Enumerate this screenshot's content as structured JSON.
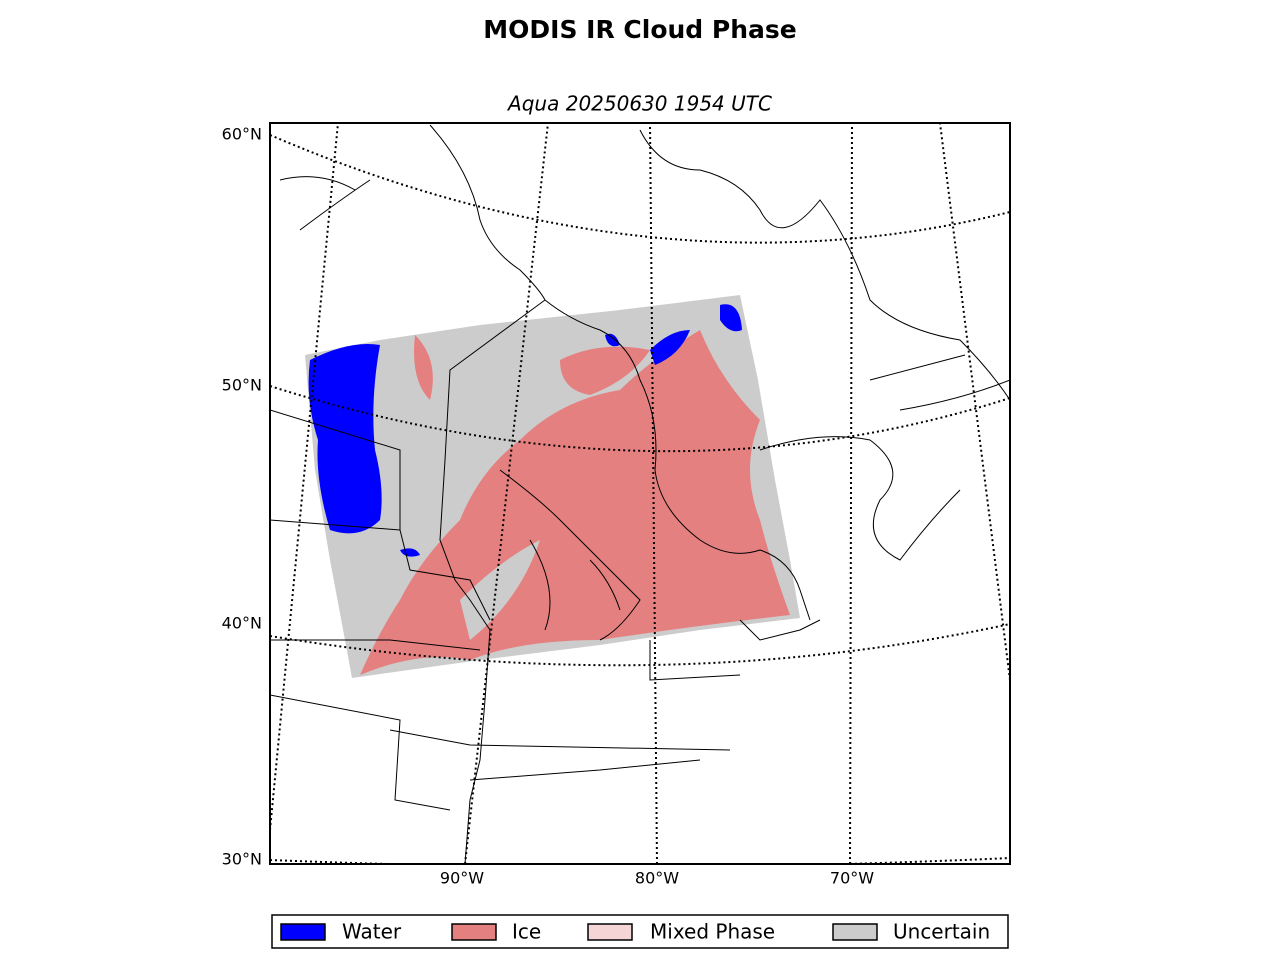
{
  "title": "MODIS IR Cloud Phase",
  "subtitle": "Aqua 20250630 1954 UTC",
  "lat_labels": [
    "60°N",
    "50°N",
    "40°N",
    "30°N"
  ],
  "lon_labels": [
    "90°W",
    "80°W",
    "70°W"
  ],
  "legend": [
    {
      "label": "Water",
      "color": "#0000ff"
    },
    {
      "label": "Ice",
      "color": "#e58080"
    },
    {
      "label": "Mixed Phase",
      "color": "#f5d5d5"
    },
    {
      "label": "Uncertain",
      "color": "#cccccc"
    }
  ]
}
